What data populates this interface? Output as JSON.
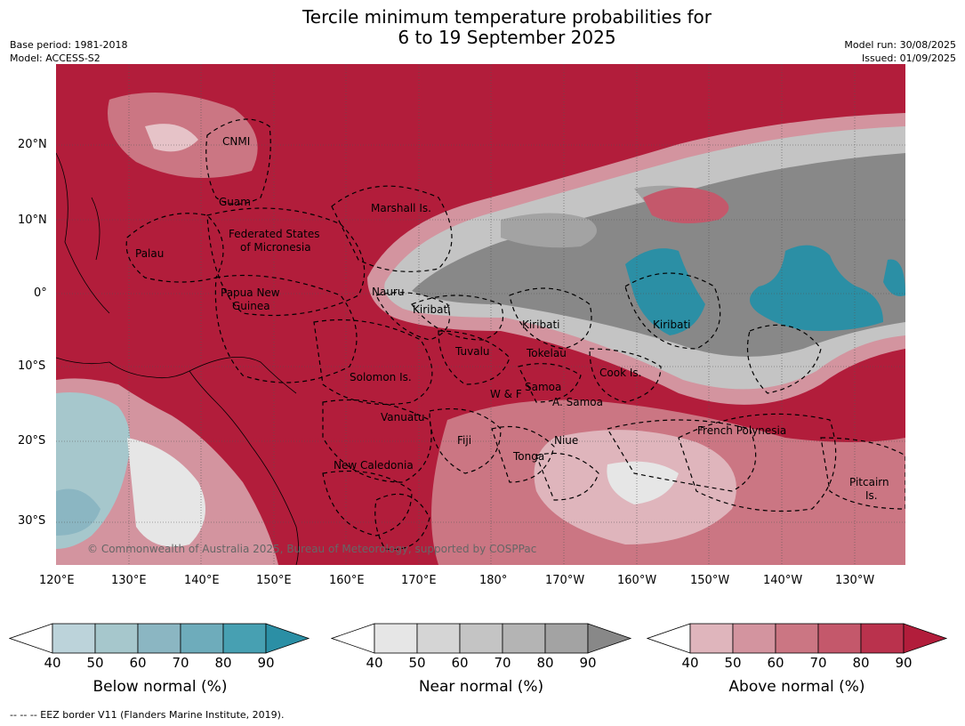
{
  "title_line1": "Tercile minimum temperature probabilities for",
  "title_line2": "6 to 19 September 2025",
  "base_period": "Base period: 1981-2018",
  "model": "Model: ACCESS-S2",
  "model_run": "Model run: 30/08/2025",
  "issued": "Issued: 01/09/2025",
  "copyright": "© Commonwealth of Australia 2025, Bureau of Meteorology, supported by COSPPac",
  "footer": "--  --  -- EEZ border V11 (Flanders Marine Institute, 2019).",
  "lat_ticks": [
    "20°N",
    "10°N",
    "0°",
    "10°S",
    "20°S",
    "30°S"
  ],
  "lon_ticks": [
    "120°E",
    "130°E",
    "140°E",
    "150°E",
    "160°E",
    "170°E",
    "180°",
    "170°W",
    "160°W",
    "150°W",
    "140°W",
    "130°W"
  ],
  "places": [
    "CNMI",
    "Guam",
    "Marshall Is.",
    "Palau",
    "Federated States",
    "of Micronesia",
    "Papua New",
    "Guinea",
    "Nauru",
    "Kiribati",
    "Kiribati",
    "Kiribati",
    "Tuvalu",
    "Tokelau",
    "Cook Is.",
    "Solomon Is.",
    "W & F",
    "Samoa",
    "A. Samoa",
    "Vanuatu",
    "Fiji",
    "Niue",
    "French Polynesia",
    "Tonga",
    "New Caledonia",
    "Pitcairn",
    "Is."
  ],
  "colorbars": [
    {
      "title": "Below normal (%)",
      "ticks": [
        "40",
        "50",
        "60",
        "70",
        "80",
        "90"
      ],
      "colors": [
        "#ffffff",
        "#bcd3da",
        "#a6c7cc",
        "#8bb6c2",
        "#6eacbb",
        "#47a0b2",
        "#2b8fa5"
      ]
    },
    {
      "title": "Near normal (%)",
      "ticks": [
        "40",
        "50",
        "60",
        "70",
        "80",
        "90"
      ],
      "colors": [
        "#ffffff",
        "#e6e6e6",
        "#d5d5d5",
        "#c4c4c4",
        "#b4b4b4",
        "#a3a3a3",
        "#888888"
      ]
    },
    {
      "title": "Above normal (%)",
      "ticks": [
        "40",
        "50",
        "60",
        "70",
        "80",
        "90"
      ],
      "colors": [
        "#ffffff",
        "#dfb5bc",
        "#d3949f",
        "#cb7683",
        "#c4586b",
        "#ba324d",
        "#b21d3b"
      ]
    }
  ]
}
